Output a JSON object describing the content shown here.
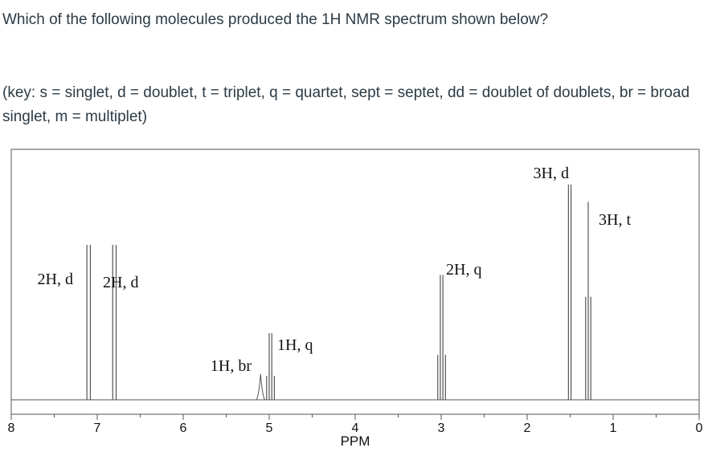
{
  "question": {
    "text": "Which of the following molecules produced the 1H NMR spectrum shown below?"
  },
  "key": {
    "text": "(key: s = singlet, d = doublet, t = triplet, q = quartet, sept = septet, dd = doublet of doublets, br = broad singlet, m = multiplet)"
  },
  "chart_data": {
    "type": "line",
    "title": "",
    "xlabel": "PPM",
    "ylabel": "",
    "xlim": [
      8,
      0
    ],
    "x_reversed": true,
    "ticks": [
      8,
      7,
      6,
      5,
      4,
      3,
      2,
      1,
      0
    ],
    "grid": false,
    "peaks": [
      {
        "shift": 6.8,
        "label": "2H, d",
        "lines": [
          6.82,
          6.78
        ],
        "height": 0.72
      },
      {
        "shift": 7.1,
        "label": "2H, d",
        "lines": [
          7.12,
          7.08
        ],
        "height": 0.72
      },
      {
        "shift": 5.1,
        "label": "1H, br",
        "lines": [
          5.1
        ],
        "height": 0.12
      },
      {
        "shift": 5.0,
        "label": "1H, q",
        "lines": [
          5.03,
          5.0,
          4.97,
          4.94
        ],
        "height": 0.31
      },
      {
        "shift": 3.0,
        "label": "2H, q",
        "lines": [
          3.04,
          3.01,
          2.98,
          2.95
        ],
        "height": 0.58
      },
      {
        "shift": 1.5,
        "label": "3H, d",
        "lines": [
          1.52,
          1.49
        ],
        "height": 1.0
      },
      {
        "shift": 1.3,
        "label": "3H, t",
        "lines": [
          1.32,
          1.29,
          1.26
        ],
        "height": 0.92
      }
    ]
  }
}
